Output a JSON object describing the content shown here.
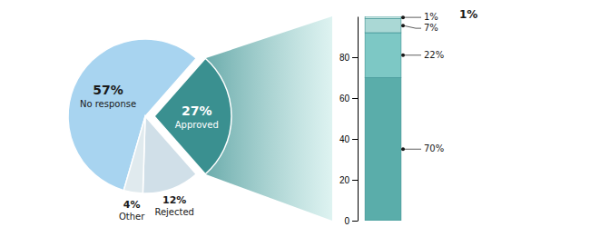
{
  "chart_data": [
    {
      "type": "pie",
      "categories": [
        "No response",
        "Approved",
        "Rejected",
        "Other"
      ],
      "values": [
        57,
        27,
        12,
        4
      ],
      "value_labels": [
        "57%",
        "27%",
        "12%",
        "4%"
      ],
      "colors": [
        "#a8d4f0",
        "#3a9090",
        "#d0dfe8",
        "#e0eaee"
      ],
      "data_labels": true
    },
    {
      "type": "bar",
      "stacked": true,
      "categories": [
        null
      ],
      "series": [
        {
          "values": [
            70
          ],
          "value_labels": [
            "70%"
          ],
          "color": "#5aadaa"
        },
        {
          "values": [
            22
          ],
          "value_labels": [
            "22%"
          ],
          "color": "#7dc8c5"
        },
        {
          "values": [
            7
          ],
          "value_labels": [
            "7%"
          ],
          "color": "#aad8d5"
        },
        {
          "values": [
            1
          ],
          "value_labels": [
            "1%"
          ],
          "color": "#cce8e5"
        }
      ],
      "ylim": [
        0,
        100
      ],
      "yticks": [
        0,
        20,
        40,
        60,
        80
      ],
      "grid": false,
      "data_labels": true,
      "tick_labels": "y",
      "annotations": [
        "1%"
      ]
    }
  ]
}
